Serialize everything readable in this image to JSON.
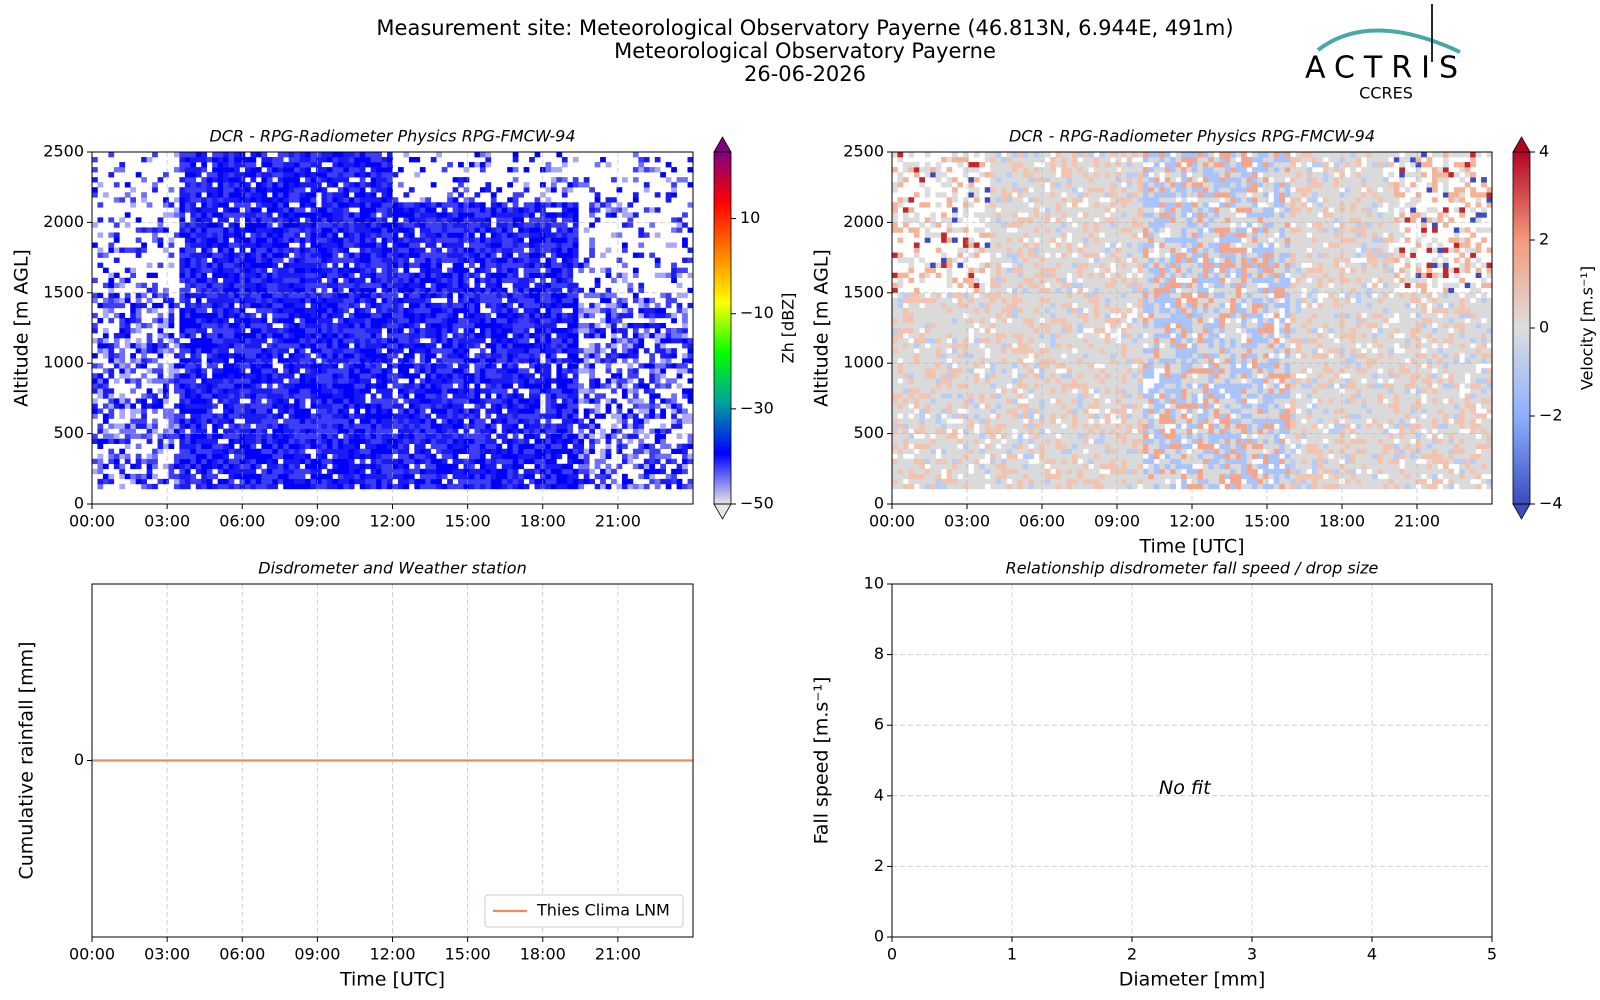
{
  "header": {
    "lines": [
      "Measurement site: Meteorological Observatory Payerne (46.813N, 6.944E, 491m)",
      "Meteorological Observatory Payerne",
      "26-06-2026"
    ]
  },
  "logo": {
    "name": "ACTRIS",
    "subtitle": "CCRES"
  },
  "chart_data": [
    {
      "type": "heatmap",
      "title": "DCR - RPG-Radiometer Physics RPG-FMCW-94",
      "ylabel": "Altitude [m AGL]",
      "xlim": [
        0,
        24
      ],
      "xticks": [
        {
          "value": 0,
          "label": "00:00"
        },
        {
          "value": 3,
          "label": "03:00"
        },
        {
          "value": 6,
          "label": "06:00"
        },
        {
          "value": 9,
          "label": "09:00"
        },
        {
          "value": 12,
          "label": "12:00"
        },
        {
          "value": 15,
          "label": "15:00"
        },
        {
          "value": 18,
          "label": "18:00"
        },
        {
          "value": 21,
          "label": "21:00"
        }
      ],
      "ylim": [
        0,
        2500
      ],
      "yticks": [
        0,
        500,
        1000,
        1500,
        2000,
        2500
      ],
      "grid": true,
      "colorbar": {
        "label": "Zh [dBZ]",
        "lim": [
          -50,
          24
        ],
        "ticks": [
          {
            "value": -50,
            "label": "−50"
          },
          {
            "value": -30,
            "label": "−30"
          },
          {
            "value": -10,
            "label": "−10"
          },
          10
        ],
        "colors": [
          "#e6e6e6",
          "#0000ff",
          "#00a0a0",
          "#00ff00",
          "#ffff00",
          "#ff8000",
          "#ff0000",
          "#800080"
        ]
      }
    },
    {
      "type": "heatmap",
      "title": "DCR - RPG-Radiometer Physics RPG-FMCW-94",
      "ylabel": "Altitude [m AGL]",
      "xlabel": "Time [UTC]",
      "xlim": [
        0,
        24
      ],
      "xticks": [
        {
          "value": 0,
          "label": "00:00"
        },
        {
          "value": 3,
          "label": "03:00"
        },
        {
          "value": 6,
          "label": "06:00"
        },
        {
          "value": 9,
          "label": "09:00"
        },
        {
          "value": 12,
          "label": "12:00"
        },
        {
          "value": 15,
          "label": "15:00"
        },
        {
          "value": 18,
          "label": "18:00"
        },
        {
          "value": 21,
          "label": "21:00"
        }
      ],
      "ylim": [
        0,
        2500
      ],
      "yticks": [
        0,
        500,
        1000,
        1500,
        2000,
        2500
      ],
      "grid": true,
      "colorbar": {
        "label": "Velocity [m.s⁻¹]",
        "lim": [
          -4,
          4
        ],
        "ticks": [
          {
            "value": -4,
            "label": "−4"
          },
          {
            "value": -2,
            "label": "−2"
          },
          0,
          2,
          4
        ],
        "colors": [
          "#3b4cc0",
          "#8db0fe",
          "#dddddd",
          "#f49a7b",
          "#b40426"
        ]
      }
    },
    {
      "type": "line",
      "title": "Disdrometer and Weather station",
      "ylabel": "Cumulative rainfall [mm]",
      "xlabel": "Time [UTC]",
      "xlim": [
        0,
        24
      ],
      "xticks": [
        {
          "value": 0,
          "label": "00:00"
        },
        {
          "value": 3,
          "label": "03:00"
        },
        {
          "value": 6,
          "label": "06:00"
        },
        {
          "value": 9,
          "label": "09:00"
        },
        {
          "value": 12,
          "label": "12:00"
        },
        {
          "value": 15,
          "label": "15:00"
        },
        {
          "value": 18,
          "label": "18:00"
        },
        {
          "value": 21,
          "label": "21:00"
        }
      ],
      "ylim": [
        -1,
        1
      ],
      "yticks": [
        0
      ],
      "grid": true,
      "legend": "lower right",
      "series": [
        {
          "name": "Thies Clima LNM",
          "color": "#ee8a5b",
          "x": [
            0,
            24
          ],
          "values": [
            0,
            0
          ]
        }
      ]
    },
    {
      "type": "scatter",
      "title": "Relationship disdrometer fall speed / drop size",
      "ylabel": "Fall speed [m.s⁻¹]",
      "xlabel": "Diameter [mm]",
      "xlim": [
        0,
        5
      ],
      "xticks": [
        0,
        1,
        2,
        3,
        4,
        5
      ],
      "ylim": [
        0,
        10
      ],
      "yticks": [
        0,
        2,
        4,
        6,
        8,
        10
      ],
      "grid": true,
      "annotation": "No fit"
    }
  ]
}
